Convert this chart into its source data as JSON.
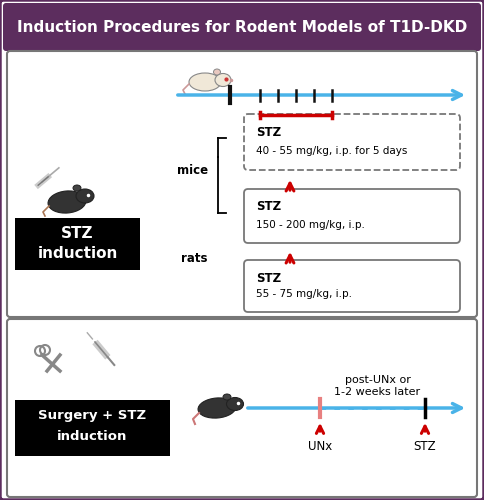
{
  "title": "Induction Procedures for Rodent Models of T1D-DKD",
  "title_bg": "#5c2d5e",
  "title_color": "#ffffff",
  "bg_color": "#ffffff",
  "outer_border_color": "#5c2d5e",
  "panel_border_color": "#777777",
  "panel1_label1": "STZ",
  "panel1_label2": "induction",
  "panel2_label1": "Surgery + STZ",
  "panel2_label2": "induction",
  "mice_label": "mice",
  "rats_label": "rats",
  "box1_line1": "STZ",
  "box1_line2": "40 - 55 mg/kg, i.p. for 5 days",
  "box2_line1": "STZ",
  "box2_line2": "150 - 200 mg/kg, i.p.",
  "box3_line1": "STZ",
  "box3_line2": "55 - 75 mg/kg, i.p.",
  "post_text1": "post-UNx or",
  "post_text2": "1-2 weeks later",
  "unx_label": "UNx",
  "stz_label2": "STZ",
  "arrow_color": "#4ab3e8",
  "red_color": "#cc0000",
  "pink_color": "#e88080",
  "black_color": "#000000",
  "tick_color": "#111111",
  "gray_color": "#888888"
}
